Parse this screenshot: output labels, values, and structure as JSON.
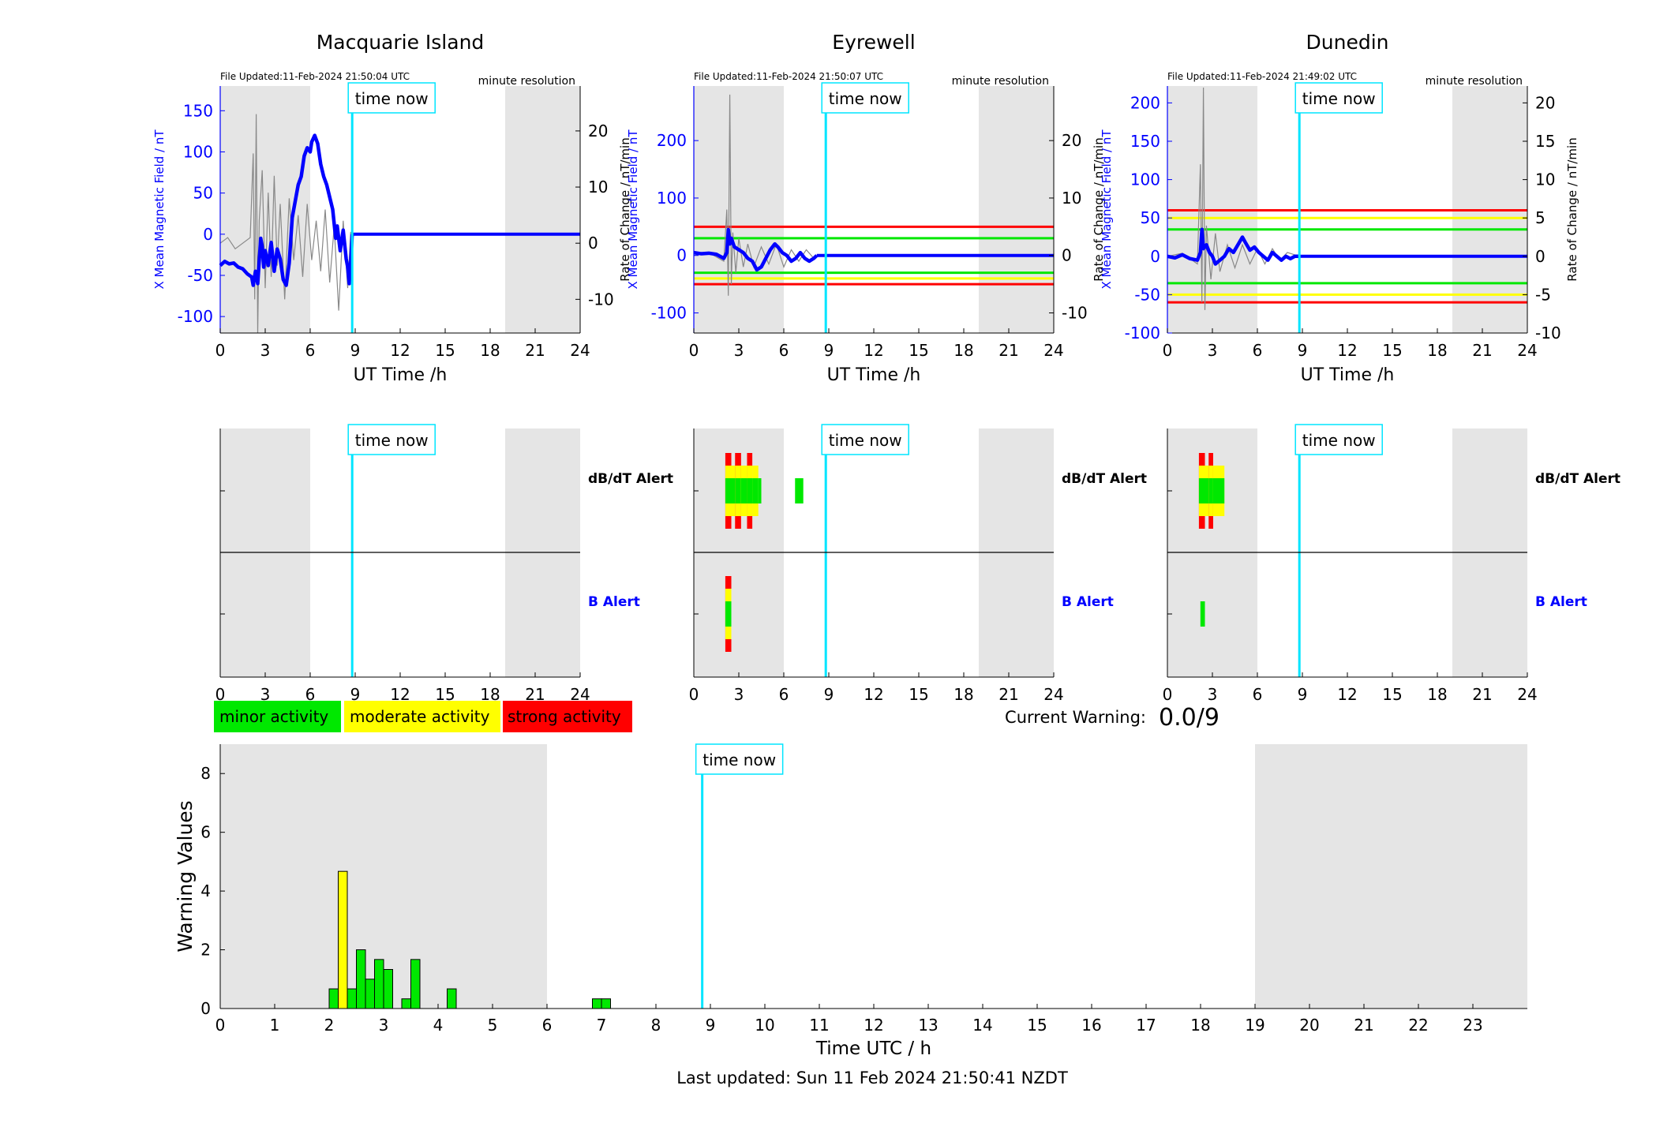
{
  "colors": {
    "blue": "#0000ff",
    "cyan": "#00e5ff",
    "grey": "#e5e5e5",
    "green": "#00e800",
    "yellow": "#ffff00",
    "red": "#ff0000",
    "black": "#000000"
  },
  "mag": [
    {
      "title": "Macquarie Island",
      "file_updated": "File Updated:11-Feb-2024 21:50:04 UTC",
      "resolution": "minute resolution",
      "time_now_label": "time now",
      "ylabel_left": "X Mean Magnetic Field / nT",
      "ylabel_right": "Rate of Change / nT/min",
      "xlabel": "UT Time /h",
      "xticks": [
        0,
        3,
        6,
        9,
        12,
        15,
        18,
        21,
        24
      ],
      "yticks_left": [
        -100,
        -50,
        0,
        50,
        100,
        150
      ],
      "yticks_right": [
        -10,
        0,
        10,
        20
      ],
      "ylim_left": [
        -120,
        180
      ],
      "ylim_right": [
        -16,
        28
      ],
      "night_bands": [
        [
          0,
          6
        ],
        [
          19,
          24
        ]
      ],
      "time_now": 8.8,
      "thresholds": [],
      "field_series": [
        [
          0,
          -38
        ],
        [
          0.3,
          -33
        ],
        [
          0.6,
          -36
        ],
        [
          0.9,
          -35
        ],
        [
          1.2,
          -40
        ],
        [
          1.5,
          -42
        ],
        [
          1.8,
          -48
        ],
        [
          2.1,
          -52
        ],
        [
          2.2,
          -62
        ],
        [
          2.35,
          -45
        ],
        [
          2.5,
          -60
        ],
        [
          2.7,
          -5
        ],
        [
          2.8,
          -15
        ],
        [
          2.9,
          -40
        ],
        [
          3.0,
          -20
        ],
        [
          3.2,
          -38
        ],
        [
          3.4,
          -10
        ],
        [
          3.6,
          -45
        ],
        [
          3.8,
          -18
        ],
        [
          4.0,
          -30
        ],
        [
          4.2,
          -55
        ],
        [
          4.4,
          -62
        ],
        [
          4.6,
          -35
        ],
        [
          4.8,
          20
        ],
        [
          5.0,
          40
        ],
        [
          5.2,
          60
        ],
        [
          5.4,
          70
        ],
        [
          5.6,
          95
        ],
        [
          5.8,
          105
        ],
        [
          6.0,
          100
        ],
        [
          6.1,
          112
        ],
        [
          6.3,
          120
        ],
        [
          6.5,
          110
        ],
        [
          6.7,
          85
        ],
        [
          6.9,
          70
        ],
        [
          7.1,
          60
        ],
        [
          7.3,
          45
        ],
        [
          7.5,
          30
        ],
        [
          7.7,
          -5
        ],
        [
          7.8,
          10
        ],
        [
          8.0,
          -20
        ],
        [
          8.2,
          5
        ],
        [
          8.4,
          -30
        ],
        [
          8.5,
          -40
        ],
        [
          8.6,
          -60
        ],
        [
          8.7,
          -35
        ],
        [
          8.8,
          0
        ]
      ],
      "field_flat": [
        [
          8.8,
          0
        ],
        [
          24,
          0
        ]
      ],
      "roc_series": [
        [
          0,
          0
        ],
        [
          0.5,
          1
        ],
        [
          1.0,
          -1
        ],
        [
          1.5,
          0
        ],
        [
          2.0,
          1
        ],
        [
          2.2,
          16
        ],
        [
          2.3,
          -10
        ],
        [
          2.4,
          23
        ],
        [
          2.5,
          -16
        ],
        [
          2.6,
          4
        ],
        [
          2.8,
          13
        ],
        [
          3.0,
          -8
        ],
        [
          3.2,
          9
        ],
        [
          3.4,
          -6
        ],
        [
          3.6,
          12
        ],
        [
          3.8,
          -4
        ],
        [
          4.0,
          7
        ],
        [
          4.3,
          -10
        ],
        [
          4.6,
          8
        ],
        [
          4.9,
          -3
        ],
        [
          5.2,
          5
        ],
        [
          5.5,
          -6
        ],
        [
          5.8,
          7
        ],
        [
          6.1,
          -3
        ],
        [
          6.4,
          4
        ],
        [
          6.7,
          -5
        ],
        [
          7.0,
          6
        ],
        [
          7.3,
          -7
        ],
        [
          7.6,
          3
        ],
        [
          7.9,
          -12
        ],
        [
          8.2,
          4
        ],
        [
          8.5,
          -8
        ],
        [
          8.7,
          2
        ],
        [
          8.8,
          0
        ]
      ]
    },
    {
      "title": "Eyrewell",
      "file_updated": "File Updated:11-Feb-2024 21:50:07 UTC",
      "resolution": "minute resolution",
      "time_now_label": "time now",
      "ylabel_left": "X Mean Magnetic Field / nT",
      "ylabel_right": "Rate of Change / nT/min",
      "xlabel": "UT Time /h",
      "xticks": [
        0,
        3,
        6,
        9,
        12,
        15,
        18,
        21,
        24
      ],
      "yticks_left": [
        -100,
        0,
        100,
        200
      ],
      "yticks_right": [
        -10,
        0,
        10,
        20
      ],
      "ylim_left": [
        -135,
        295
      ],
      "ylim_right": [
        -13.5,
        29.5
      ],
      "night_bands": [
        [
          0,
          6
        ],
        [
          19,
          24
        ]
      ],
      "time_now": 8.8,
      "thresholds": [
        {
          "value": 50,
          "color": "#ff0000"
        },
        {
          "value": 30,
          "color": "#00e800"
        },
        {
          "value": -30,
          "color": "#00e800"
        },
        {
          "value": -40,
          "color": "#ffff00"
        },
        {
          "value": -50,
          "color": "#ff0000"
        }
      ],
      "field_series": [
        [
          0,
          5
        ],
        [
          0.5,
          3
        ],
        [
          1.0,
          4
        ],
        [
          1.5,
          2
        ],
        [
          2.0,
          -5
        ],
        [
          2.2,
          5
        ],
        [
          2.3,
          45
        ],
        [
          2.4,
          20
        ],
        [
          2.5,
          30
        ],
        [
          2.7,
          15
        ],
        [
          3.0,
          10
        ],
        [
          3.3,
          5
        ],
        [
          3.6,
          -5
        ],
        [
          3.9,
          -10
        ],
        [
          4.2,
          -25
        ],
        [
          4.5,
          -20
        ],
        [
          4.8,
          -5
        ],
        [
          5.1,
          10
        ],
        [
          5.4,
          20
        ],
        [
          5.6,
          15
        ],
        [
          5.9,
          5
        ],
        [
          6.2,
          0
        ],
        [
          6.5,
          -10
        ],
        [
          6.8,
          -5
        ],
        [
          7.1,
          5
        ],
        [
          7.4,
          -5
        ],
        [
          7.7,
          -10
        ],
        [
          8.0,
          -5
        ],
        [
          8.2,
          0
        ]
      ],
      "field_flat": [
        [
          8.2,
          0
        ],
        [
          24,
          0
        ]
      ],
      "roc_series": [
        [
          0,
          0
        ],
        [
          1.0,
          0.5
        ],
        [
          2.0,
          -1
        ],
        [
          2.2,
          8
        ],
        [
          2.3,
          -7
        ],
        [
          2.4,
          28
        ],
        [
          2.5,
          -5
        ],
        [
          2.6,
          4
        ],
        [
          2.8,
          -3
        ],
        [
          3.0,
          3
        ],
        [
          3.3,
          -2
        ],
        [
          3.6,
          2
        ],
        [
          4.0,
          -2
        ],
        [
          4.5,
          1.5
        ],
        [
          5.0,
          -1.5
        ],
        [
          5.5,
          2
        ],
        [
          6.0,
          -2
        ],
        [
          6.5,
          1
        ],
        [
          7.0,
          -1
        ],
        [
          7.5,
          1
        ],
        [
          8.0,
          -0.5
        ],
        [
          8.2,
          0
        ]
      ]
    },
    {
      "title": "Dunedin",
      "file_updated": "File Updated:11-Feb-2024 21:49:02 UTC",
      "resolution": "minute resolution",
      "time_now_label": "time now",
      "ylabel_left": "X Mean Magnetic Field / nT",
      "ylabel_right": "Rate of Change / nT/min",
      "xlabel": "UT Time /h",
      "xticks": [
        0,
        3,
        6,
        9,
        12,
        15,
        18,
        21,
        24
      ],
      "yticks_left": [
        -100,
        -50,
        0,
        50,
        100,
        150,
        200
      ],
      "yticks_right": [
        -10,
        -5,
        0,
        5,
        10,
        15,
        20
      ],
      "ylim_left": [
        -100,
        222
      ],
      "ylim_right": [
        -10,
        22.2
      ],
      "night_bands": [
        [
          0,
          6
        ],
        [
          19,
          24
        ]
      ],
      "time_now": 8.8,
      "thresholds": [
        {
          "value": 60,
          "color": "#ff0000"
        },
        {
          "value": 50,
          "color": "#ffff00"
        },
        {
          "value": 35,
          "color": "#00e800"
        },
        {
          "value": -35,
          "color": "#00e800"
        },
        {
          "value": -50,
          "color": "#ffff00"
        },
        {
          "value": -60,
          "color": "#ff0000"
        }
      ],
      "field_series": [
        [
          0,
          0
        ],
        [
          0.5,
          -2
        ],
        [
          1.0,
          2
        ],
        [
          1.5,
          -3
        ],
        [
          2.0,
          -5
        ],
        [
          2.2,
          5
        ],
        [
          2.3,
          35
        ],
        [
          2.4,
          10
        ],
        [
          2.6,
          15
        ],
        [
          2.8,
          5
        ],
        [
          3.0,
          0
        ],
        [
          3.2,
          -10
        ],
        [
          3.5,
          -5
        ],
        [
          3.8,
          0
        ],
        [
          4.1,
          10
        ],
        [
          4.4,
          5
        ],
        [
          4.7,
          15
        ],
        [
          5.0,
          25
        ],
        [
          5.2,
          18
        ],
        [
          5.5,
          8
        ],
        [
          5.8,
          12
        ],
        [
          6.1,
          5
        ],
        [
          6.4,
          0
        ],
        [
          6.7,
          -5
        ],
        [
          7.0,
          5
        ],
        [
          7.3,
          0
        ],
        [
          7.6,
          -5
        ],
        [
          7.9,
          0
        ],
        [
          8.2,
          -3
        ],
        [
          8.5,
          0
        ],
        [
          8.8,
          0
        ]
      ],
      "field_flat": [
        [
          8.8,
          0
        ],
        [
          24,
          0
        ]
      ],
      "roc_series": [
        [
          0,
          0
        ],
        [
          1.0,
          0.4
        ],
        [
          2.0,
          -1
        ],
        [
          2.2,
          12
        ],
        [
          2.3,
          -6
        ],
        [
          2.4,
          22
        ],
        [
          2.5,
          -7
        ],
        [
          2.6,
          4
        ],
        [
          2.9,
          -3
        ],
        [
          3.2,
          3
        ],
        [
          3.5,
          -2
        ],
        [
          4.0,
          1.5
        ],
        [
          4.5,
          -1.5
        ],
        [
          5.0,
          1.5
        ],
        [
          5.5,
          -1
        ],
        [
          6.0,
          1
        ],
        [
          6.5,
          -1
        ],
        [
          7.0,
          1
        ],
        [
          7.5,
          -0.5
        ],
        [
          8.0,
          0.5
        ],
        [
          8.8,
          0
        ]
      ]
    }
  ],
  "alerts": [
    {
      "time_now_label": "time now",
      "dbdt_label": "dB/dT Alert",
      "b_label": "B Alert",
      "xticks": [
        0,
        3,
        6,
        9,
        12,
        15,
        18,
        21,
        24
      ],
      "night_bands": [
        [
          0,
          6
        ],
        [
          19,
          24
        ]
      ],
      "time_now": 8.8,
      "dbdt_blocks": [],
      "b_blocks": []
    },
    {
      "time_now_label": "time now",
      "dbdt_label": "dB/dT Alert",
      "b_label": "B Alert",
      "xticks": [
        0,
        3,
        6,
        9,
        12,
        15,
        18,
        21,
        24
      ],
      "night_bands": [
        [
          0,
          6
        ],
        [
          19,
          24
        ]
      ],
      "time_now": 8.8,
      "dbdt_blocks": [
        {
          "x0": 2.1,
          "x1": 2.5,
          "level": 3
        },
        {
          "x0": 2.5,
          "x1": 2.75,
          "level": 2
        },
        {
          "x0": 2.75,
          "x1": 3.15,
          "level": 3
        },
        {
          "x0": 3.15,
          "x1": 3.55,
          "level": 2
        },
        {
          "x0": 3.55,
          "x1": 3.9,
          "level": 3
        },
        {
          "x0": 3.9,
          "x1": 4.3,
          "level": 2
        },
        {
          "x0": 4.3,
          "x1": 4.5,
          "level": 1
        },
        {
          "x0": 6.75,
          "x1": 7.3,
          "level": 1
        }
      ],
      "b_blocks": [
        {
          "x0": 2.1,
          "x1": 2.5,
          "level": 3
        }
      ]
    },
    {
      "time_now_label": "time now",
      "dbdt_label": "dB/dT Alert",
      "b_label": "B Alert",
      "xticks": [
        0,
        3,
        6,
        9,
        12,
        15,
        18,
        21,
        24
      ],
      "night_bands": [
        [
          0,
          6
        ],
        [
          19,
          24
        ]
      ],
      "time_now": 8.8,
      "dbdt_blocks": [
        {
          "x0": 2.1,
          "x1": 2.5,
          "level": 3
        },
        {
          "x0": 2.5,
          "x1": 2.75,
          "level": 2
        },
        {
          "x0": 2.75,
          "x1": 3.05,
          "level": 3
        },
        {
          "x0": 3.05,
          "x1": 3.5,
          "level": 2
        },
        {
          "x0": 3.5,
          "x1": 3.8,
          "level": 2
        }
      ],
      "b_blocks": [
        {
          "x0": 2.2,
          "x1": 2.5,
          "level": 1
        }
      ]
    }
  ],
  "legend": {
    "minor": "minor activity",
    "moderate": "moderate activity",
    "strong": "strong activity"
  },
  "current_warning": {
    "label": "Current Warning:",
    "value": "0.0/9"
  },
  "chart_data": {
    "type": "bar",
    "xlabel": "Time UTC / h",
    "ylabel": "Warning Values",
    "xticks": [
      0,
      1,
      2,
      3,
      4,
      5,
      6,
      7,
      8,
      9,
      10,
      11,
      12,
      13,
      14,
      15,
      16,
      17,
      18,
      19,
      20,
      21,
      22,
      23
    ],
    "yticks": [
      0,
      2,
      4,
      6,
      8
    ],
    "xlim": [
      0,
      24
    ],
    "ylim": [
      0,
      9
    ],
    "night_bands": [
      [
        0,
        6
      ],
      [
        19,
        24
      ]
    ],
    "time_now": 8.85,
    "time_now_label": "time now",
    "bar_width": 0.1667,
    "bars": [
      {
        "x": 2.0,
        "value": 0.67,
        "level": "minor"
      },
      {
        "x": 2.1667,
        "value": 4.67,
        "level": "moderate"
      },
      {
        "x": 2.3333,
        "value": 0.67,
        "level": "minor"
      },
      {
        "x": 2.5,
        "value": 2.0,
        "level": "minor"
      },
      {
        "x": 2.6667,
        "value": 1.0,
        "level": "minor"
      },
      {
        "x": 2.8333,
        "value": 1.67,
        "level": "minor"
      },
      {
        "x": 3.0,
        "value": 1.33,
        "level": "minor"
      },
      {
        "x": 3.3333,
        "value": 0.33,
        "level": "minor"
      },
      {
        "x": 3.5,
        "value": 1.67,
        "level": "minor"
      },
      {
        "x": 4.1667,
        "value": 0.67,
        "level": "minor"
      },
      {
        "x": 6.8333,
        "value": 0.33,
        "level": "minor"
      },
      {
        "x": 7.0,
        "value": 0.33,
        "level": "minor"
      }
    ]
  },
  "footer": {
    "last_updated": "Last updated: Sun 11 Feb 2024 21:50:41 NZDT"
  }
}
